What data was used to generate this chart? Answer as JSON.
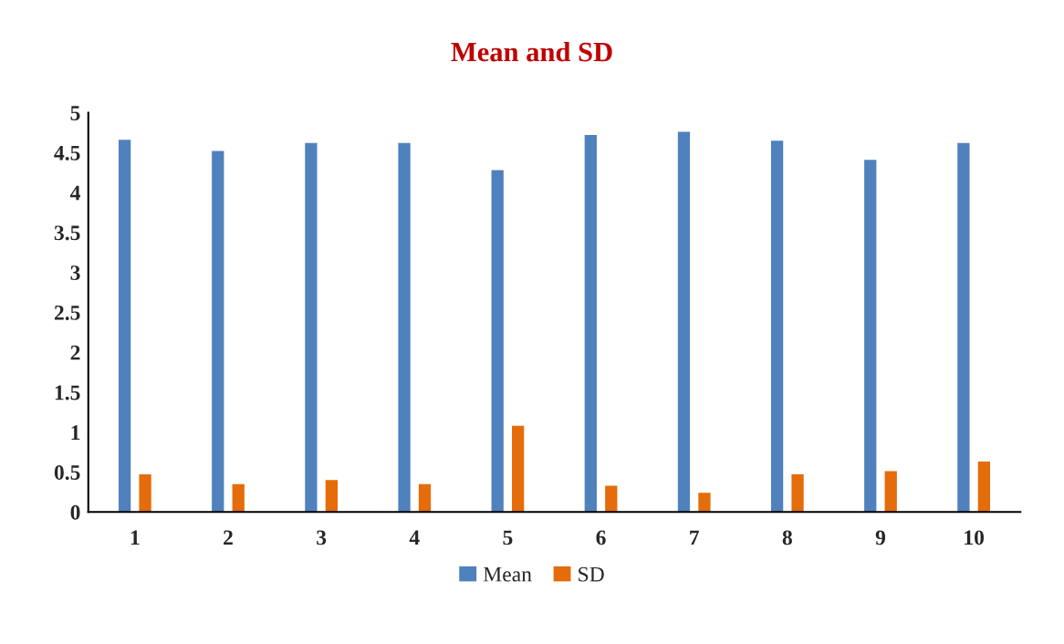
{
  "chart_data": {
    "type": "bar",
    "title": "Mean and SD",
    "categories": [
      "1",
      "2",
      "3",
      "4",
      "5",
      "6",
      "7",
      "8",
      "9",
      "10"
    ],
    "series": [
      {
        "name": "Mean",
        "color": "#4f81bd",
        "values": [
          4.66,
          4.52,
          4.62,
          4.62,
          4.28,
          4.72,
          4.76,
          4.65,
          4.41,
          4.62
        ]
      },
      {
        "name": "SD",
        "color": "#e46c0a",
        "values": [
          0.47,
          0.35,
          0.4,
          0.35,
          1.08,
          0.33,
          0.24,
          0.47,
          0.51,
          0.63
        ]
      }
    ],
    "ylim": [
      0,
      5
    ],
    "yticks": [
      0,
      0.5,
      1,
      1.5,
      2,
      2.5,
      3,
      3.5,
      4,
      4.5,
      5
    ],
    "grid": false,
    "legend": "bottom"
  }
}
